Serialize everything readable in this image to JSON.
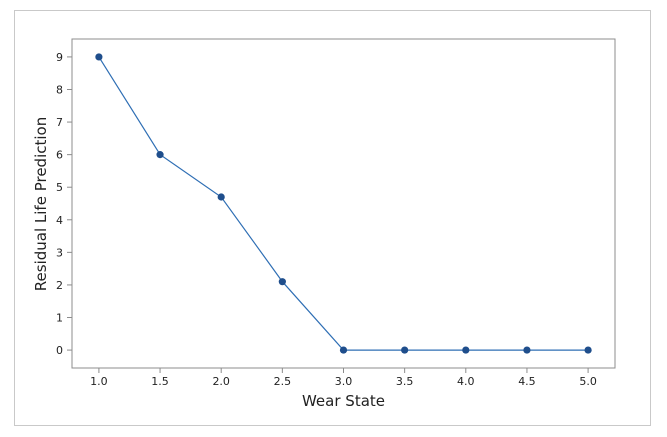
{
  "chart_data": {
    "type": "line",
    "title": "",
    "xlabel": "Wear State",
    "ylabel": "Residual Life Prediction",
    "x": [
      1.0,
      1.5,
      2.0,
      2.5,
      3.0,
      3.5,
      4.0,
      4.5,
      5.0
    ],
    "series": [
      {
        "values": [
          9,
          6,
          4.7,
          2.1,
          0,
          0,
          0,
          0,
          0
        ]
      }
    ],
    "xticks": [
      "1.0",
      "1.5",
      "2.0",
      "2.5",
      "3.0",
      "3.5",
      "4.0",
      "4.5",
      "5.0"
    ],
    "yticks": [
      "0",
      "1",
      "2",
      "3",
      "4",
      "5",
      "6",
      "7",
      "8",
      "9"
    ],
    "xlim": [
      0.78,
      5.22
    ],
    "ylim": [
      -0.55,
      9.55
    ],
    "grid": false,
    "line_color": "#2e6eb4",
    "marker_color": "#1f4e8c",
    "plot_border_color": "#8c8c8c"
  }
}
